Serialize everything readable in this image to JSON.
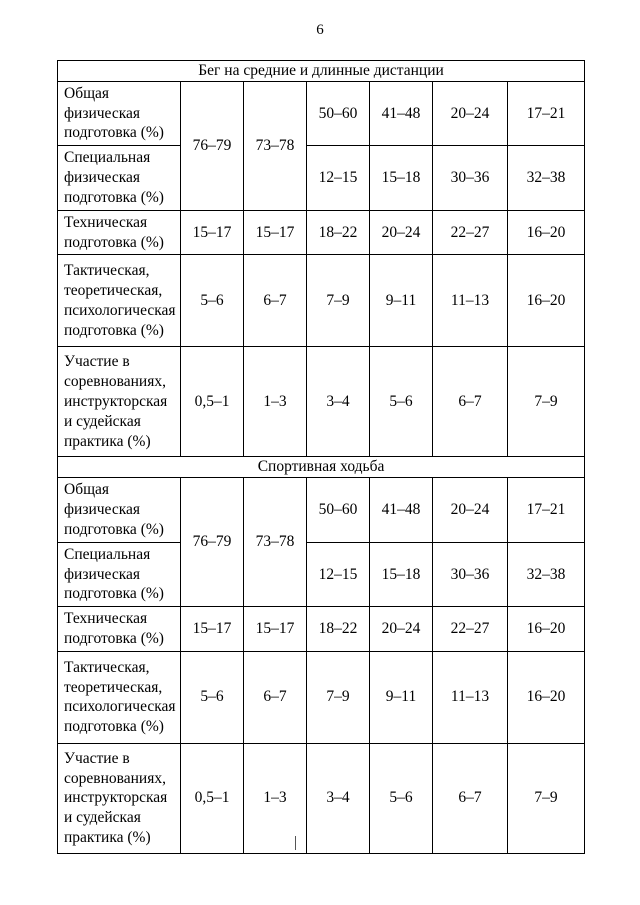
{
  "page": {
    "number": "6"
  },
  "table": {
    "sections": [
      {
        "title": "Бег на средние и длинные дистанции",
        "merged": [
          "76–79",
          "73–78"
        ],
        "rows": [
          {
            "label": "Общая физическая подготовка (%)",
            "values": [
              "50–60",
              "41–48",
              "20–24",
              "17–21"
            ]
          },
          {
            "label": "Специальная физическая подготовка (%)",
            "values": [
              "12–15",
              "15–18",
              "30–36",
              "32–38"
            ]
          },
          {
            "label": "Техническая подготовка (%)",
            "values": [
              "15–17",
              "15–17",
              "18–22",
              "20–24",
              "22–27",
              "16–20"
            ]
          },
          {
            "label": "Тактическая, теоретическая, психологическая подготовка (%)",
            "values": [
              "5–6",
              "6–7",
              "7–9",
              "9–11",
              "11–13",
              "16–20"
            ]
          },
          {
            "label": "Участие в соревнованиях, инструкторская и судейская практика (%)",
            "values": [
              "0,5–1",
              "1–3",
              "3–4",
              "5–6",
              "6–7",
              "7–9"
            ]
          }
        ]
      },
      {
        "title": "Спортивная ходьба",
        "merged": [
          "76–79",
          "73–78"
        ],
        "rows": [
          {
            "label": "Общая физическая подготовка (%)",
            "values": [
              "50–60",
              "41–48",
              "20–24",
              "17–21"
            ]
          },
          {
            "label": "Специальная физическая подготовка (%)",
            "values": [
              "12–15",
              "15–18",
              "30–36",
              "32–38"
            ]
          },
          {
            "label": "Техническая подготовка (%)",
            "values": [
              "15–17",
              "15–17",
              "18–22",
              "20–24",
              "22–27",
              "16–20"
            ]
          },
          {
            "label": "Тактическая, теоретическая, психологическая подготовка (%)",
            "values": [
              "5–6",
              "6–7",
              "7–9",
              "9–11",
              "11–13",
              "16–20"
            ]
          },
          {
            "label": "Участие в соревнованиях, инструкторская и судейская практика (%)",
            "values": [
              "0,5–1",
              "1–3",
              "3–4",
              "5–6",
              "6–7",
              "7–9"
            ]
          }
        ]
      }
    ]
  }
}
